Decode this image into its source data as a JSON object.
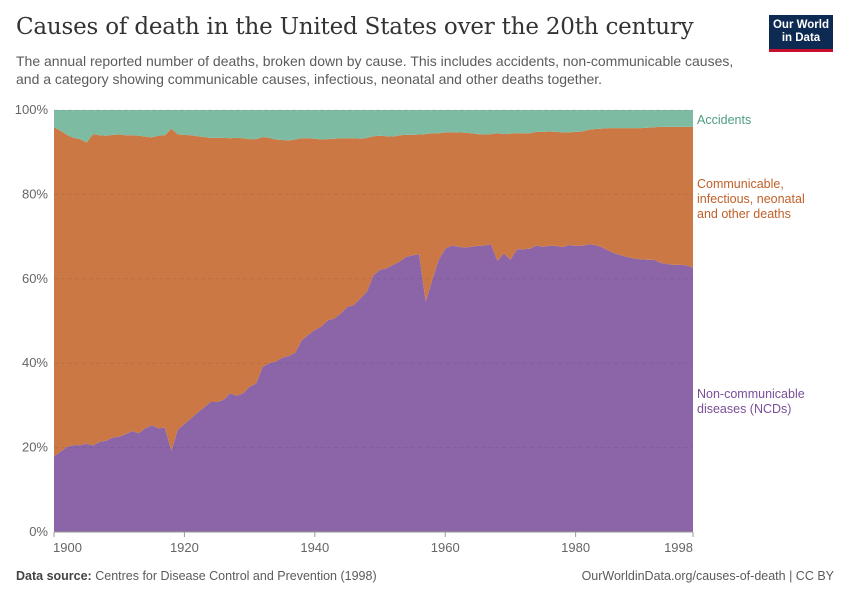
{
  "header": {
    "title": "Causes of death in the United States over the 20th century",
    "subtitle": "The annual reported number of deaths, broken down by cause. This includes accidents, non-communicable causes, and a category showing communicable causes, infectious, neonatal and other deaths together.",
    "logo_text": "Our World in Data"
  },
  "footer": {
    "source_label": "Data source:",
    "source_text": "Centres for Disease Control and Prevention (1998)",
    "url_license": "OurWorldinData.org/causes-of-death | CC BY"
  },
  "chart_data": {
    "type": "area",
    "stacked": true,
    "relative": true,
    "x_range": [
      1900,
      1998
    ],
    "ylim": [
      0,
      100
    ],
    "x_ticks": [
      "1900",
      "1920",
      "1940",
      "1960",
      "1980",
      "1998"
    ],
    "y_ticks": [
      "0%",
      "20%",
      "40%",
      "60%",
      "80%",
      "100%"
    ],
    "grid": "horizontal dashed",
    "legend": "right, inline labels",
    "years_start": 1900,
    "years_end": 1998,
    "series": [
      {
        "name": "Non-communicable diseases (NCDs)",
        "color": "#8c65a8",
        "label_color": "#7a4f9a",
        "values": [
          17.9,
          19.0,
          20.2,
          20.6,
          20.6,
          20.9,
          20.5,
          21.4,
          21.6,
          22.4,
          22.6,
          23.2,
          23.9,
          23.4,
          24.6,
          25.3,
          24.6,
          24.7,
          19.3,
          24.3,
          25.6,
          26.9,
          28.3,
          29.5,
          30.8,
          30.8,
          31.3,
          32.9,
          32.3,
          32.9,
          34.4,
          35.2,
          39.2,
          40.0,
          40.4,
          41.3,
          41.7,
          42.5,
          45.5,
          46.7,
          47.9,
          48.7,
          50.2,
          50.6,
          51.8,
          53.4,
          53.8,
          55.4,
          57.0,
          60.9,
          62.1,
          62.5,
          63.3,
          64.1,
          65.2,
          65.6,
          65.8,
          54.6,
          59.7,
          64.5,
          67.1,
          67.9,
          67.6,
          67.4,
          67.6,
          67.8,
          67.9,
          68.2,
          64.3,
          66.0,
          64.5,
          67.0,
          67.0,
          67.1,
          67.9,
          67.6,
          67.8,
          67.8,
          67.5,
          68.0,
          67.8,
          67.8,
          68.2,
          68.0,
          67.5,
          66.7,
          66.0,
          65.6,
          65.1,
          64.8,
          64.6,
          64.5,
          64.5,
          63.8,
          63.5,
          63.3,
          63.3,
          63.2,
          62.6
        ]
      },
      {
        "name": "Communicable, infectious, neonatal and other deaths",
        "color": "#cb7845",
        "label_color": "#c0602a",
        "values": [
          78.0,
          76.1,
          73.9,
          72.8,
          72.5,
          71.4,
          73.8,
          72.6,
          72.3,
          71.7,
          71.6,
          70.8,
          70.1,
          70.5,
          69.1,
          68.2,
          69.3,
          69.3,
          76.3,
          69.9,
          68.5,
          67.1,
          65.5,
          64.1,
          62.6,
          62.6,
          62.1,
          60.4,
          61.1,
          60.4,
          58.7,
          57.9,
          54.4,
          53.4,
          52.6,
          51.6,
          51.1,
          50.5,
          47.8,
          46.6,
          45.3,
          44.3,
          42.9,
          42.6,
          41.5,
          39.9,
          39.5,
          37.8,
          36.4,
          32.9,
          31.8,
          31.3,
          30.4,
          29.9,
          28.9,
          28.5,
          28.4,
          39.7,
          34.8,
          30.0,
          27.6,
          26.8,
          27.1,
          27.2,
          26.9,
          26.5,
          26.3,
          26.1,
          30.2,
          28.3,
          29.9,
          27.5,
          27.5,
          27.4,
          26.9,
          27.2,
          27.1,
          27.0,
          27.2,
          26.7,
          27.0,
          27.1,
          27.1,
          27.5,
          28.1,
          29.0,
          29.7,
          30.1,
          30.6,
          30.9,
          31.1,
          31.3,
          31.4,
          32.2,
          32.5,
          32.7,
          32.7,
          32.8,
          33.4
        ]
      },
      {
        "name": "Accidents",
        "color": "#7dbca2",
        "label_color": "#4f9e7e",
        "values": [
          4.1,
          4.9,
          5.9,
          6.6,
          6.9,
          7.7,
          5.7,
          6.0,
          6.1,
          5.9,
          5.8,
          6.0,
          6.0,
          6.1,
          6.3,
          6.5,
          6.1,
          6.0,
          4.4,
          5.8,
          5.9,
          6.0,
          6.2,
          6.4,
          6.6,
          6.6,
          6.6,
          6.7,
          6.6,
          6.7,
          6.9,
          6.9,
          6.4,
          6.6,
          7.0,
          7.1,
          7.2,
          7.0,
          6.7,
          6.7,
          6.8,
          7.0,
          6.9,
          6.8,
          6.7,
          6.7,
          6.7,
          6.8,
          6.6,
          6.2,
          6.1,
          6.2,
          6.3,
          6.0,
          5.9,
          5.9,
          5.8,
          5.7,
          5.5,
          5.5,
          5.3,
          5.3,
          5.3,
          5.4,
          5.5,
          5.7,
          5.8,
          5.7,
          5.5,
          5.7,
          5.6,
          5.5,
          5.5,
          5.5,
          5.2,
          5.2,
          5.1,
          5.2,
          5.3,
          5.3,
          5.2,
          5.1,
          4.7,
          4.5,
          4.4,
          4.3,
          4.3,
          4.3,
          4.3,
          4.3,
          4.3,
          4.2,
          4.1,
          4.0,
          4.0,
          4.0,
          4.0,
          4.0,
          4.0
        ]
      }
    ],
    "labels": {
      "accidents": [
        "Accidents"
      ],
      "communicable": [
        "Communicable,",
        "infectious, neonatal",
        "and other deaths"
      ],
      "ncd": [
        "Non-communicable",
        "diseases (NCDs)"
      ]
    }
  }
}
